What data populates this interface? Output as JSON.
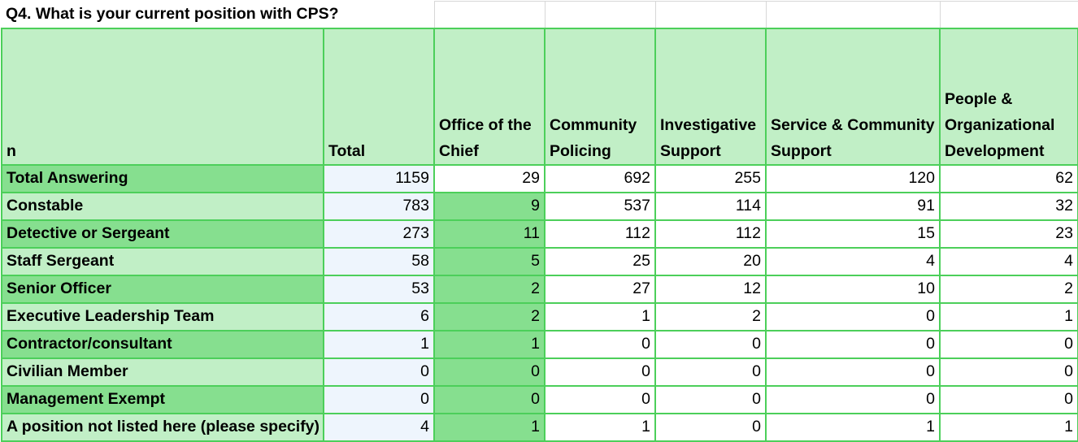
{
  "sheet": {
    "title": "Q4. What is your current position with CPS?",
    "corner_label": "n",
    "columns": [
      "Total",
      "Office of the Chief",
      "Community Policing",
      "Investigative Support",
      "Service & Community Support",
      "People & Organizational Development"
    ],
    "rows": [
      {
        "label": "Total Answering",
        "values": [
          "1159",
          "29",
          "692",
          "255",
          "120",
          "62"
        ]
      },
      {
        "label": "Constable",
        "values": [
          "783",
          "9",
          "537",
          "114",
          "91",
          "32"
        ]
      },
      {
        "label": "Detective or Sergeant",
        "values": [
          "273",
          "11",
          "112",
          "112",
          "15",
          "23"
        ]
      },
      {
        "label": "Staff Sergeant",
        "values": [
          "58",
          "5",
          "25",
          "20",
          "4",
          "4"
        ]
      },
      {
        "label": "Senior Officer",
        "values": [
          "53",
          "2",
          "27",
          "12",
          "10",
          "2"
        ]
      },
      {
        "label": "Executive Leadership Team",
        "values": [
          "6",
          "2",
          "1",
          "2",
          "0",
          "1"
        ]
      },
      {
        "label": "Contractor/consultant",
        "values": [
          "1",
          "1",
          "0",
          "0",
          "0",
          "0"
        ]
      },
      {
        "label": "Civilian Member",
        "values": [
          "0",
          "0",
          "0",
          "0",
          "0",
          "0"
        ]
      },
      {
        "label": "Management Exempt",
        "values": [
          "0",
          "0",
          "0",
          "0",
          "0",
          "0"
        ]
      },
      {
        "label": "A position not listed here (please specify)",
        "values": [
          "4",
          "1",
          "1",
          "0",
          "1",
          "1"
        ]
      }
    ]
  },
  "colors": {
    "grid_border": "#4ccf5a",
    "header_fill": "#c1efc6",
    "dark_fill": "#86df8f",
    "total_fill": "#eef5fd"
  }
}
